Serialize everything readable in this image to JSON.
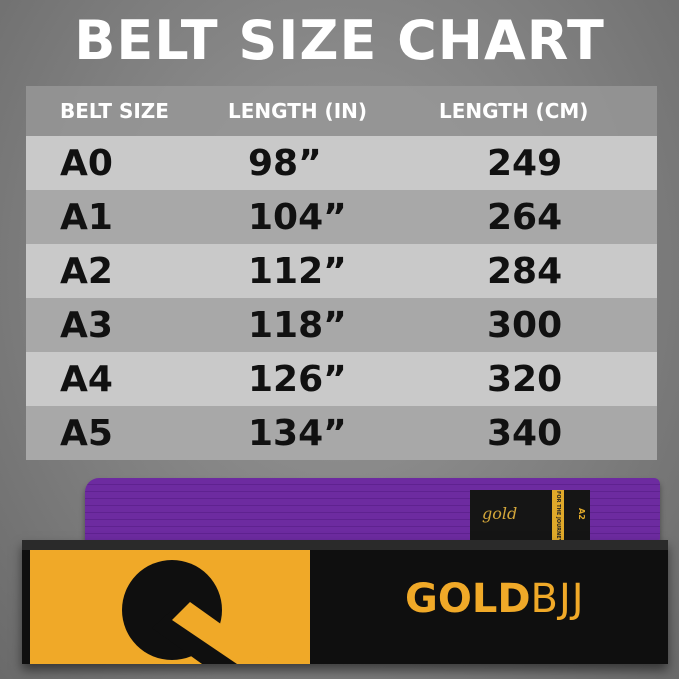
{
  "title": "BELT SIZE CHART",
  "chart_data": {
    "type": "table",
    "columns": [
      "BELT SIZE",
      "LENGTH (IN)",
      "LENGTH (CM)"
    ],
    "rows": [
      [
        "A0",
        "98”",
        "249"
      ],
      [
        "A1",
        "104”",
        "264"
      ],
      [
        "A2",
        "112”",
        "284"
      ],
      [
        "A3",
        "118”",
        "300"
      ],
      [
        "A4",
        "126”",
        "320"
      ],
      [
        "A5",
        "134”",
        "340"
      ]
    ]
  },
  "product": {
    "belt_color": "#6d2ba0",
    "patch_script": "gold",
    "patch_tagline": "FOR THE JOURNEY",
    "patch_size": "A2",
    "brand_bold": "GOLD",
    "brand_light": "BJJ",
    "brand_color": "#f0a928"
  }
}
